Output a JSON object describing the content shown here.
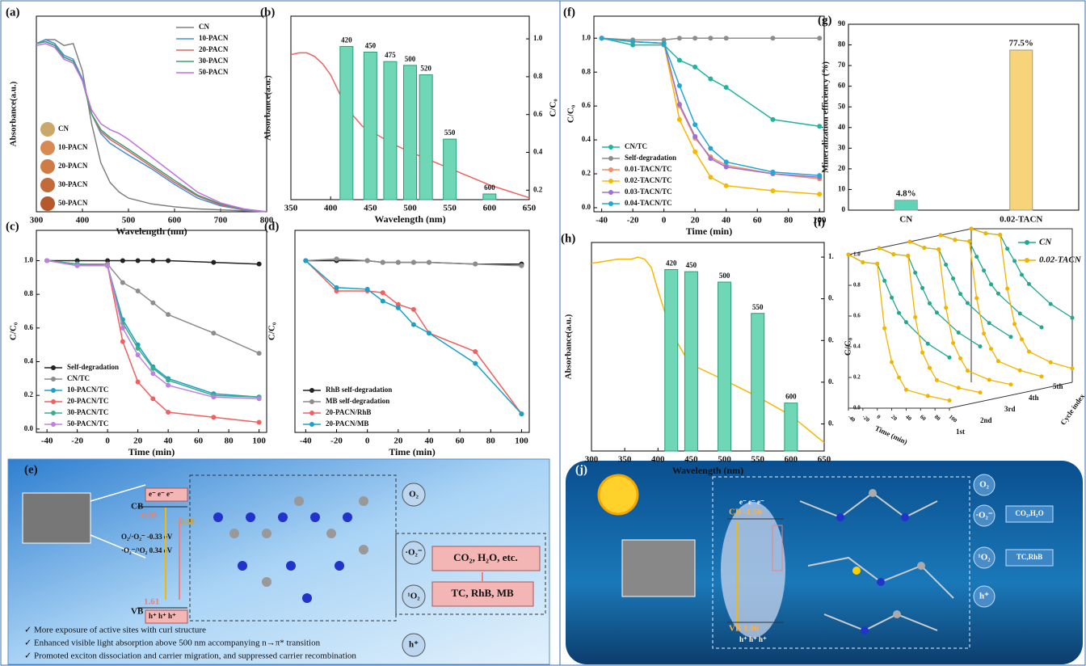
{
  "chart_data": [
    {
      "panel": "(a)",
      "type": "line",
      "xlabel": "Wavelength (nm)",
      "ylabel": "Absorbance(a.u.)",
      "x": [
        300,
        320,
        340,
        360,
        380,
        400,
        420,
        440,
        460,
        480,
        500,
        550,
        600,
        650,
        700,
        750,
        800
      ],
      "xlim": [
        300,
        800
      ],
      "xticks": [
        300,
        400,
        500,
        600,
        700,
        800
      ],
      "ylim": [
        0,
        1
      ],
      "legend": "top-right",
      "markers": false,
      "series": [
        {
          "name": "CN",
          "color": "#808080",
          "values": [
            0.86,
            0.88,
            0.88,
            0.85,
            0.86,
            0.72,
            0.45,
            0.25,
            0.15,
            0.1,
            0.07,
            0.04,
            0.025,
            0.015,
            0.01,
            0.005,
            0.0
          ]
        },
        {
          "name": "10-PACN",
          "color": "#4a8fd8",
          "values": [
            0.86,
            0.88,
            0.86,
            0.8,
            0.78,
            0.68,
            0.5,
            0.4,
            0.35,
            0.32,
            0.29,
            0.22,
            0.14,
            0.07,
            0.03,
            0.01,
            0.0
          ]
        },
        {
          "name": "20-PACN",
          "color": "#e06060",
          "values": [
            0.86,
            0.87,
            0.85,
            0.79,
            0.77,
            0.67,
            0.5,
            0.41,
            0.37,
            0.34,
            0.31,
            0.23,
            0.15,
            0.08,
            0.035,
            0.012,
            0.0
          ]
        },
        {
          "name": "30-PACN",
          "color": "#3aa070",
          "values": [
            0.86,
            0.87,
            0.85,
            0.79,
            0.77,
            0.67,
            0.5,
            0.42,
            0.38,
            0.35,
            0.32,
            0.24,
            0.16,
            0.085,
            0.04,
            0.013,
            0.0
          ]
        },
        {
          "name": "50-PACN",
          "color": "#c070e0",
          "values": [
            0.85,
            0.86,
            0.84,
            0.78,
            0.76,
            0.67,
            0.52,
            0.45,
            0.42,
            0.4,
            0.37,
            0.28,
            0.19,
            0.1,
            0.045,
            0.015,
            0.0
          ]
        }
      ],
      "inset_labels": [
        "CN",
        "10-PACN",
        "20-PACN",
        "30-PACN",
        "50-PACN"
      ],
      "inset_colors": [
        "#c9a96a",
        "#d98a52",
        "#cf7b45",
        "#c26a38",
        "#b5592c"
      ]
    },
    {
      "panel": "(b)",
      "type": "combo",
      "xlabel": "Wavelength (nm)",
      "ylabel": "Absorbance(a.u.)",
      "y2label": "C/C₀",
      "xlim": [
        350,
        650
      ],
      "xticks": [
        350,
        400,
        450,
        500,
        550,
        600,
        650
      ],
      "ylim": [
        0,
        1
      ],
      "y2lim": [
        0.15,
        1.12
      ],
      "y2ticks": [
        0.2,
        0.4,
        0.6,
        0.8,
        {
          "value": 1,
          "label": "1.0"
        }
      ],
      "series": [
        {
          "type": "line",
          "color": "#f06060",
          "x": [
            350,
            360,
            370,
            380,
            390,
            400,
            420,
            440,
            460,
            480,
            500,
            550,
            600,
            650
          ],
          "values": [
            0.79,
            0.8,
            0.8,
            0.78,
            0.74,
            0.68,
            0.5,
            0.4,
            0.35,
            0.3,
            0.26,
            0.17,
            0.08,
            0.01
          ]
        },
        {
          "type": "bar",
          "axis": "y2",
          "color": "#6fd6b6",
          "x": [
            420,
            450,
            475,
            500,
            520,
            550,
            600
          ],
          "values": [
            0.96,
            0.93,
            0.88,
            0.86,
            0.81,
            0.47,
            0.18
          ]
        }
      ]
    },
    {
      "panel": "(c)",
      "type": "line",
      "xlabel": "Time (min)",
      "ylabel": "C/C₀",
      "x": [
        -40,
        -20,
        0,
        10,
        20,
        30,
        40,
        70,
        100
      ],
      "xlim": [
        -47,
        105
      ],
      "xticks": [
        -40,
        -20,
        0,
        20,
        40,
        60,
        80,
        100
      ],
      "ylim": [
        -0.02,
        1.18
      ],
      "yticks": [
        {
          "value": 0,
          "label": "0.0"
        },
        0.2,
        0.4,
        0.6,
        0.8,
        {
          "value": 1,
          "label": "1.0"
        }
      ],
      "legend": "bottom-left",
      "markers": true,
      "series": [
        {
          "name": "Self-degradation",
          "color": "#222222",
          "values": [
            1,
            1,
            1,
            1,
            1,
            1,
            1,
            0.99,
            0.98
          ]
        },
        {
          "name": "CN/TC",
          "color": "#8c8c8c",
          "values": [
            1,
            0.98,
            0.98,
            0.87,
            0.82,
            0.75,
            0.68,
            0.57,
            0.45
          ]
        },
        {
          "name": "10-PACN/TC",
          "color": "#1ba0c8",
          "values": [
            1,
            0.98,
            0.97,
            0.65,
            0.5,
            0.37,
            0.3,
            0.21,
            0.19
          ]
        },
        {
          "name": "20-PACN/TC",
          "color": "#f06060",
          "values": [
            1,
            0.98,
            0.97,
            0.52,
            0.28,
            0.18,
            0.1,
            0.07,
            0.04
          ]
        },
        {
          "name": "30-PACN/TC",
          "color": "#3aae8a",
          "values": [
            1,
            0.98,
            0.97,
            0.63,
            0.48,
            0.36,
            0.29,
            0.2,
            0.19
          ]
        },
        {
          "name": "50-PACN/TC",
          "color": "#c080e0",
          "values": [
            1,
            0.97,
            0.97,
            0.6,
            0.44,
            0.33,
            0.26,
            0.19,
            0.18
          ]
        }
      ]
    },
    {
      "panel": "(d)",
      "type": "line",
      "xlabel": "Time (min)",
      "ylabel": "C/C₀",
      "x": [
        -40,
        -20,
        0,
        10,
        20,
        30,
        40,
        70,
        100
      ],
      "xlim": [
        -47,
        105
      ],
      "xticks": [
        -40,
        -20,
        0,
        20,
        40,
        60,
        80,
        100
      ],
      "ylim": [
        -0.02,
        1.18
      ],
      "legend": "bottom-left",
      "markers": true,
      "series": [
        {
          "name": "RhB self-degradation",
          "color": "#222222",
          "values": [
            1,
            1,
            1,
            0.99,
            0.99,
            0.99,
            0.99,
            0.98,
            0.98
          ]
        },
        {
          "name": "MB self-degradation",
          "color": "#8c8c8c",
          "values": [
            1,
            1.01,
            1,
            0.99,
            0.99,
            0.99,
            0.99,
            0.98,
            0.97
          ]
        },
        {
          "name": "20-PACN/RhB",
          "color": "#f06060",
          "values": [
            1,
            0.82,
            0.82,
            0.81,
            0.74,
            0.71,
            0.57,
            0.46,
            0.09
          ]
        },
        {
          "name": "20-PACN/MB",
          "color": "#1ba0c8",
          "values": [
            1,
            0.84,
            0.83,
            0.76,
            0.72,
            0.62,
            0.57,
            0.39,
            0.09
          ]
        }
      ]
    },
    {
      "panel": "(f)",
      "type": "line",
      "xlabel": "Time (min)",
      "ylabel": "C/C₀",
      "x": [
        -40,
        -20,
        0,
        10,
        20,
        30,
        40,
        70,
        100
      ],
      "xlim": [
        -45,
        103
      ],
      "xticks": [
        -40,
        -20,
        0,
        20,
        40,
        60,
        80,
        100
      ],
      "ylim": [
        -0.024,
        1.13
      ],
      "yticks": [
        {
          "value": 0,
          "label": "0.0"
        },
        0.2,
        0.4,
        0.6,
        0.8,
        {
          "value": 1,
          "label": "1.0"
        }
      ],
      "legend": "bottom-left",
      "markers": true,
      "series": [
        {
          "name": "CN/TC",
          "color": "#22b3a0",
          "values": [
            1,
            0.96,
            0.96,
            0.87,
            0.83,
            0.76,
            0.71,
            0.52,
            0.48
          ]
        },
        {
          "name": "Self-degradation",
          "color": "#8c8c8c",
          "values": [
            1,
            0.99,
            0.99,
            1,
            1,
            1,
            1,
            1,
            1
          ]
        },
        {
          "name": "0.01-TACN/TC",
          "color": "#f0906a",
          "values": [
            1,
            0.98,
            0.97,
            0.6,
            0.41,
            0.3,
            0.25,
            0.2,
            0.17
          ]
        },
        {
          "name": "0.02-TACN/TC",
          "color": "#f5b800",
          "values": [
            1,
            0.98,
            0.97,
            0.52,
            0.33,
            0.18,
            0.13,
            0.1,
            0.08
          ]
        },
        {
          "name": "0.03-TACN/TC",
          "color": "#a070d0",
          "values": [
            1,
            0.98,
            0.97,
            0.61,
            0.42,
            0.29,
            0.24,
            0.2,
            0.18
          ]
        },
        {
          "name": "0.04-TACN/TC",
          "color": "#20a8d0",
          "values": [
            1,
            0.98,
            0.97,
            0.72,
            0.49,
            0.35,
            0.27,
            0.21,
            0.19
          ]
        }
      ]
    },
    {
      "panel": "(g)",
      "type": "bar",
      "ylabel": "Mineralization efficiency (%)",
      "categories": [
        "CN",
        "0.02-TACN"
      ],
      "values": [
        4.8,
        77.5
      ],
      "value_labels": [
        "4.8%",
        "77.5%"
      ],
      "colors": [
        "#5fd3b8",
        "#f7d37a"
      ],
      "ylim": [
        0,
        90
      ],
      "yticks": [
        0,
        10,
        20,
        30,
        40,
        50,
        60,
        70,
        80,
        90
      ]
    },
    {
      "panel": "(h)",
      "type": "combo",
      "xlabel": "Wavelength (nm)",
      "ylabel": "Absorbance(a.u.)",
      "y2label": "C/C₀",
      "xlim": [
        300,
        650
      ],
      "xticks": [
        300,
        350,
        400,
        450,
        500,
        550,
        600,
        650
      ],
      "ylim": [
        0,
        1
      ],
      "y2lim": [
        0.07,
        1.07
      ],
      "y2ticks": [
        {
          "value": 1,
          "label": "1."
        },
        {
          "value": 0.8,
          "label": "0."
        },
        {
          "value": 0.6,
          "label": "0."
        },
        {
          "value": 0.4,
          "label": "0."
        },
        {
          "value": 0.2,
          "label": "0."
        }
      ],
      "series": [
        {
          "type": "line",
          "color": "#f5b800",
          "x": [
            300,
            320,
            340,
            360,
            370,
            380,
            390,
            400,
            420,
            440,
            460,
            480,
            500,
            550,
            600,
            650
          ],
          "values": [
            0.9,
            0.91,
            0.92,
            0.92,
            0.93,
            0.92,
            0.88,
            0.77,
            0.57,
            0.46,
            0.4,
            0.37,
            0.34,
            0.26,
            0.17,
            0.04
          ]
        },
        {
          "type": "bar",
          "axis": "y2",
          "color": "#6fd6b6",
          "x": [
            420,
            450,
            500,
            550,
            600
          ],
          "values": [
            0.94,
            0.93,
            0.88,
            0.73,
            0.3
          ]
        }
      ]
    },
    {
      "panel": "(i)",
      "type": "line3d",
      "xlabel": "Time (min)",
      "zlabel": "Cycle index",
      "x": [
        -40,
        -20,
        0,
        10,
        20,
        30,
        40,
        70,
        100
      ],
      "xlim": [
        -40,
        100
      ],
      "xticks": [
        -40,
        -20,
        0,
        20,
        40,
        60,
        80,
        100
      ],
      "ylim": [
        0,
        1
      ],
      "yticks": [
        {
          "value": 0,
          "label": "0.0"
        },
        0.2,
        0.4,
        0.6,
        0.8,
        {
          "value": 1,
          "label": "1.0"
        }
      ],
      "cycles": [
        "1st",
        "2nd",
        "3rd",
        "4th",
        "5th"
      ],
      "legend": "top-right",
      "series": [
        {
          "name": "CN",
          "color": "#22a88e",
          "values": [
            [
              1,
              0.95,
              0.94,
              0.83,
              0.72,
              0.62,
              0.56,
              0.42,
              0.33
            ],
            [
              1,
              0.96,
              0.95,
              0.84,
              0.74,
              0.64,
              0.58,
              0.45,
              0.36
            ],
            [
              1,
              0.96,
              0.95,
              0.85,
              0.76,
              0.66,
              0.6,
              0.47,
              0.38
            ],
            [
              1,
              0.97,
              0.96,
              0.86,
              0.77,
              0.68,
              0.62,
              0.49,
              0.4
            ],
            [
              1,
              0.97,
              0.96,
              0.87,
              0.79,
              0.7,
              0.64,
              0.51,
              0.42
            ]
          ]
        },
        {
          "name": "0.02-TACN",
          "color": "#f0b400",
          "values": [
            [
              1,
              0.95,
              0.94,
              0.52,
              0.3,
              0.2,
              0.12,
              0.08,
              0.05
            ],
            [
              1,
              0.96,
              0.95,
              0.55,
              0.32,
              0.22,
              0.14,
              0.09,
              0.06
            ],
            [
              1,
              0.96,
              0.95,
              0.57,
              0.34,
              0.24,
              0.16,
              0.1,
              0.07
            ],
            [
              1,
              0.97,
              0.96,
              0.59,
              0.36,
              0.26,
              0.18,
              0.12,
              0.08
            ],
            [
              1,
              0.97,
              0.96,
              0.61,
              0.38,
              0.28,
              0.2,
              0.13,
              0.09
            ]
          ]
        }
      ]
    }
  ],
  "diagrams": {
    "e": {
      "panel": "(e)",
      "cb": "CB",
      "vb": "VB",
      "electrons": "e⁻  e⁻  e⁻",
      "holes": "h⁺ h⁺ h⁺",
      "cb_potential": "-0.95",
      "gap_potential": "-0.38",
      "vb_potential": "1.61",
      "redox1": "O₂/·O₂⁻ -0.33 eV",
      "redox2": "·O₂⁻/¹O₂ 0.34 eV",
      "species": [
        "O₂",
        "·O₂⁻",
        "¹O₂",
        "h⁺"
      ],
      "products": "CO₂, H₂O, etc.",
      "pollutants": "TC, RhB, MB",
      "bullets": [
        "✓  More exposure of active sites with curl structure",
        "✓  Enhanced visible light absorption above 500 nm accompanying n→π* transition",
        "✓  Promoted exciton dissociation and carrier migration, and suppressed carrier recombination"
      ]
    },
    "j": {
      "panel": "(j)",
      "cb": "CB -1.56",
      "vb": "VB 1.06",
      "electrons": "e⁻ e⁻ e⁻",
      "holes": "h⁺ h⁺ h⁺",
      "species": [
        "O₂",
        "·O₂⁻",
        "¹O₂",
        "h⁺"
      ],
      "products": "CO₂,H₂O",
      "pollutants": "TC,RhB"
    }
  }
}
